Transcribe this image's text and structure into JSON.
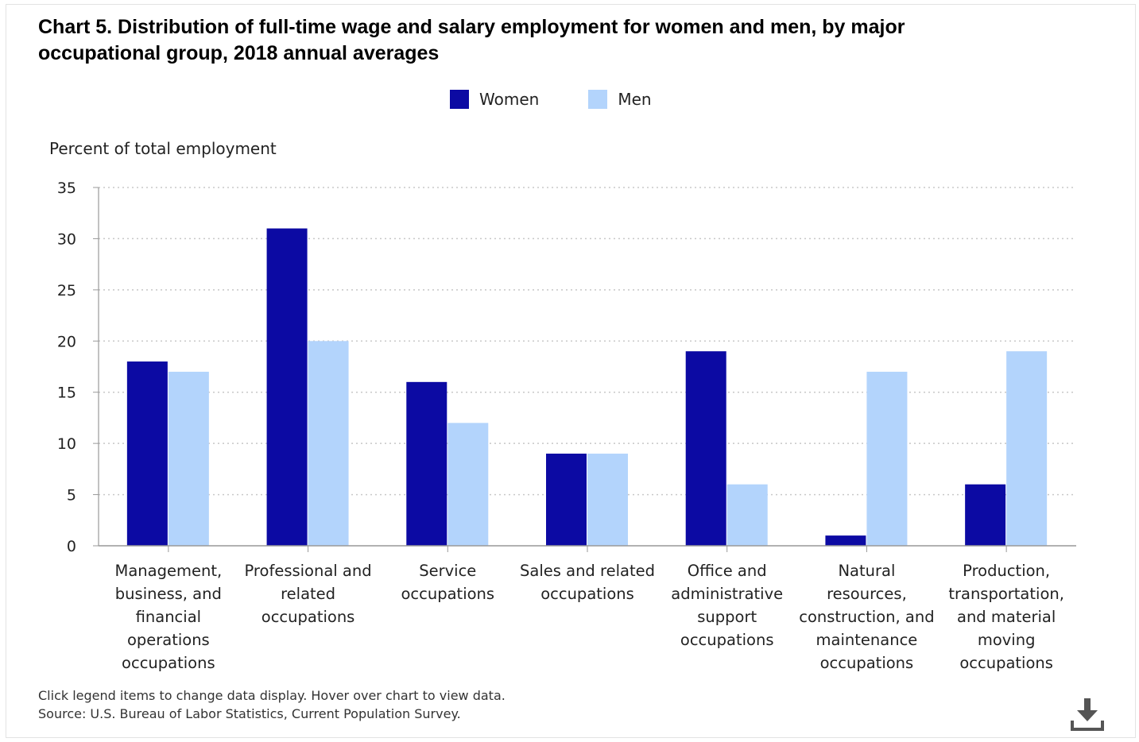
{
  "chart_data": {
    "type": "bar",
    "title": "Chart 5. Distribution of full-time wage and salary employment for women and men, by major occupational group, 2018 annual averages",
    "ylabel": "Percent of total employment",
    "xlabel": "",
    "ylim": [
      0,
      35
    ],
    "yticks": [
      0,
      5,
      10,
      15,
      20,
      25,
      30,
      35
    ],
    "grid": "horizontal dotted",
    "legend_position": "top-center",
    "categories": [
      "Management, business, and financial operations occupations",
      "Professional and related occupations",
      "Service occupations",
      "Sales and related occupations",
      "Office and administrative support occupations",
      "Natural resources, construction, and maintenance occupations",
      "Production, transportation, and material moving occupations"
    ],
    "series": [
      {
        "name": "Women",
        "color": "#0c0aa3",
        "values": [
          18,
          31,
          16,
          9,
          19,
          1,
          6
        ]
      },
      {
        "name": "Men",
        "color": "#b3d4fc",
        "values": [
          17,
          20,
          12,
          9,
          6,
          17,
          19
        ]
      }
    ]
  },
  "notes": {
    "hint": "Click legend items to change data display. Hover over chart to view data.",
    "source": "Source: U.S. Bureau of Labor Statistics, Current Population Survey."
  },
  "icons": {
    "download": "download-icon"
  }
}
